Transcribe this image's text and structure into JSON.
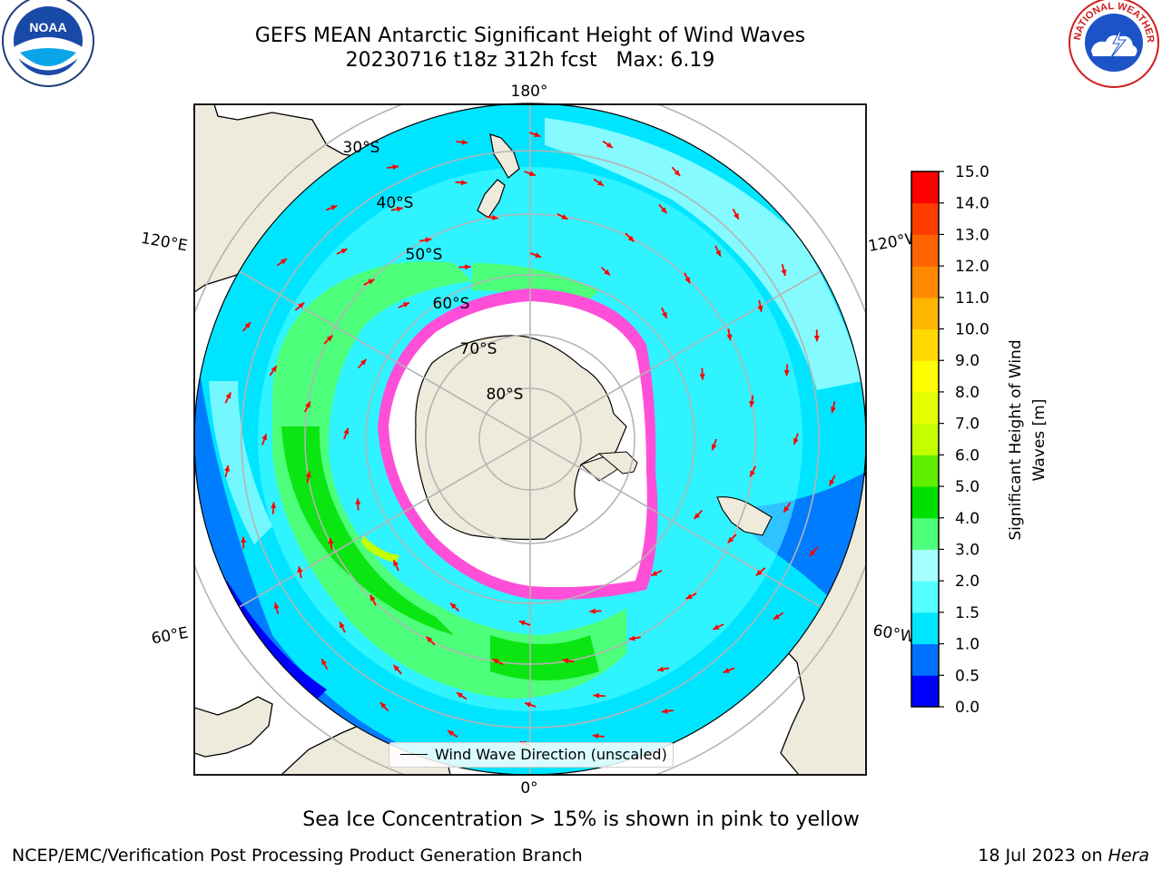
{
  "title_line1": "GEFS MEAN Antarctic Significant Height of Wind Waves",
  "title_line2": "20230716 t18z 312h fcst   Max: 6.19",
  "logos": {
    "left": {
      "icon": "noaa-logo",
      "text": "NOAA"
    },
    "right": {
      "icon": "nws-logo",
      "text": "NATIONAL WEATHER SERVICE"
    }
  },
  "map": {
    "projection": "south-polar-stereographic",
    "lon_labels": {
      "top": "180°",
      "bottom": "0°",
      "upper_left": "120°E",
      "upper_right": "120°W",
      "lower_left": "60°E",
      "lower_right": "60°W"
    },
    "lat_labels": [
      "30°S",
      "40°S",
      "50°S",
      "60°S",
      "70°S",
      "80°S"
    ],
    "legend_text": "Wind Wave Direction (unscaled)",
    "arrow_color": "#ff0000"
  },
  "colorbar": {
    "title_line1": "Significant Height of Wind",
    "title_line2": "Waves [m]",
    "ticks": [
      "0.0",
      "0.5",
      "1.0",
      "1.5",
      "2.0",
      "3.0",
      "4.0",
      "5.0",
      "6.0",
      "7.0",
      "8.0",
      "9.0",
      "10.0",
      "11.0",
      "12.0",
      "13.0",
      "14.0",
      "15.0"
    ],
    "colors": [
      "#0000ff",
      "#0070ff",
      "#00e5ff",
      "#55ffff",
      "#a6ffff",
      "#4dff7a",
      "#00e000",
      "#60ee00",
      "#c4ff00",
      "#e6ff00",
      "#ffff00",
      "#ffd800",
      "#ffb400",
      "#ff8a00",
      "#ff6200",
      "#ff3c00",
      "#ff0000"
    ]
  },
  "colors": {
    "land": "#efebdc",
    "ice_ring": "#ff4fd8",
    "grid": "#b4b4b4"
  },
  "caption": "Sea Ice Concentration > 15% is shown in pink to yellow",
  "footer_left": "NCEP/EMC/Verification Post Processing Product Generation Branch",
  "footer_right_date": "18 Jul 2023 on ",
  "footer_right_host": "Hera"
}
